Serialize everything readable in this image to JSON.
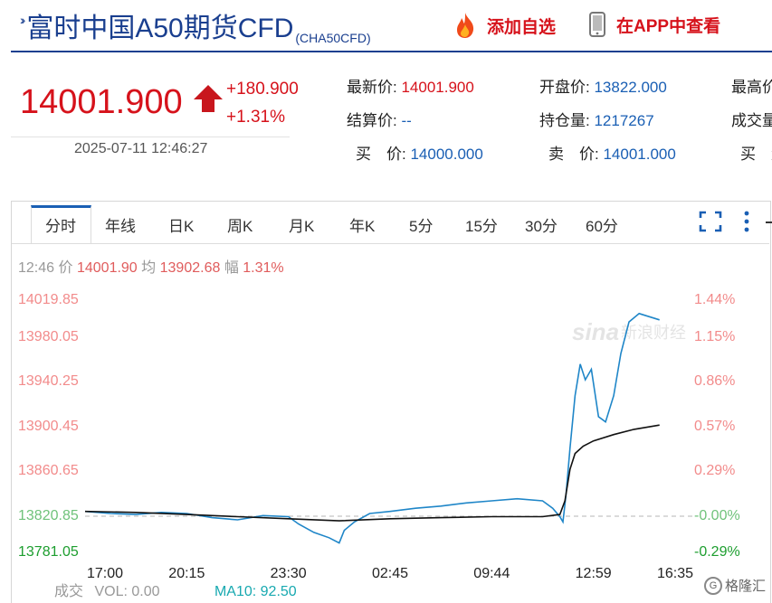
{
  "header": {
    "title": "富时中国A50期货CFD",
    "code": "(CHA50CFD)",
    "add_watch_label": "添加自选",
    "view_app_label": "在APP中查看"
  },
  "price": {
    "last": "14001.900",
    "change": "+180.900",
    "change_pct": "+1.31%",
    "datetime": "2025-07-11 12:46:27"
  },
  "quote": {
    "latest_label": "最新价:",
    "latest_value": "14001.900",
    "open_label": "开盘价:",
    "open_value": "13822.000",
    "high_label": "最高价",
    "settle_label": "结算价:",
    "settle_value": "--",
    "oi_label": "持仓量:",
    "oi_value": "1217267",
    "volume_label": "成交量",
    "bid_label": "买　价:",
    "bid_value": "14000.000",
    "ask_label": "卖　价:",
    "ask_value": "14001.000",
    "bid_vol_label": "买　量"
  },
  "tabs": [
    "分时",
    "年线",
    "日K",
    "周K",
    "月K",
    "年K",
    "5分",
    "15分",
    "30分",
    "60分"
  ],
  "info": {
    "time": "12:46",
    "price_label": "价",
    "price_value": "14001.90",
    "avg_label": "均",
    "avg_value": "13902.68",
    "amp_label": "幅",
    "amp_value": "1.31%"
  },
  "volume": {
    "label": "成交",
    "vol_text": "VOL: 0.00",
    "ma10_text": "MA10: 92.50"
  },
  "colors": {
    "red": "#d6121b",
    "blue": "#1a5fb4",
    "price_line": "#1f86c8",
    "avg_line": "#111111",
    "teal": "#18a9b0"
  },
  "chart_data": {
    "type": "line",
    "y_left_ticks": [
      "14019.85",
      "13980.05",
      "13940.25",
      "13900.45",
      "13860.65",
      "13820.85",
      "13781.05"
    ],
    "y_right_ticks": [
      "1.44%",
      "1.15%",
      "0.86%",
      "0.57%",
      "0.29%",
      "-0.00%",
      "-0.29%"
    ],
    "x_ticks": [
      "17:00",
      "20:15",
      "23:30",
      "02:45",
      "09:44",
      "12:59",
      "16:35"
    ],
    "ylim": [
      13781.05,
      14019.85
    ],
    "base": 13820.85,
    "x_range": [
      0,
      6
    ],
    "series": [
      {
        "values": [
          [
            0,
            13820
          ],
          [
            0.25,
            13818
          ],
          [
            0.5,
            13817
          ],
          [
            0.75,
            13819
          ],
          [
            1,
            13818
          ],
          [
            1.25,
            13814
          ],
          [
            1.5,
            13812
          ],
          [
            1.75,
            13816
          ],
          [
            2,
            13815
          ],
          [
            2.1,
            13808
          ],
          [
            2.25,
            13800
          ],
          [
            2.4,
            13795
          ],
          [
            2.5,
            13790
          ],
          [
            2.55,
            13802
          ],
          [
            2.65,
            13810
          ],
          [
            2.8,
            13818
          ],
          [
            3,
            13820
          ],
          [
            3.25,
            13823
          ],
          [
            3.5,
            13825
          ],
          [
            3.75,
            13828
          ],
          [
            4,
            13830
          ],
          [
            4.25,
            13832
          ],
          [
            4.5,
            13830
          ],
          [
            4.6,
            13823
          ],
          [
            4.67,
            13815
          ],
          [
            4.7,
            13810
          ],
          [
            4.73,
            13835
          ],
          [
            4.77,
            13880
          ],
          [
            4.82,
            13930
          ],
          [
            4.87,
            13960
          ],
          [
            4.92,
            13945
          ],
          [
            4.98,
            13955
          ],
          [
            5.05,
            13910
          ],
          [
            5.12,
            13905
          ],
          [
            5.2,
            13930
          ],
          [
            5.27,
            13970
          ],
          [
            5.35,
            14000
          ],
          [
            5.45,
            14008
          ],
          [
            5.55,
            14005
          ],
          [
            5.65,
            14002
          ]
        ]
      },
      {
        "values": [
          [
            0,
            13820
          ],
          [
            0.5,
            13819
          ],
          [
            1,
            13817
          ],
          [
            1.5,
            13815
          ],
          [
            2,
            13813
          ],
          [
            2.5,
            13811
          ],
          [
            3,
            13813
          ],
          [
            3.5,
            13814
          ],
          [
            4,
            13815
          ],
          [
            4.5,
            13815
          ],
          [
            4.67,
            13817
          ],
          [
            4.72,
            13830
          ],
          [
            4.77,
            13860
          ],
          [
            4.82,
            13875
          ],
          [
            4.9,
            13882
          ],
          [
            5.0,
            13887
          ],
          [
            5.2,
            13893
          ],
          [
            5.4,
            13898
          ],
          [
            5.65,
            13902
          ]
        ]
      }
    ]
  }
}
